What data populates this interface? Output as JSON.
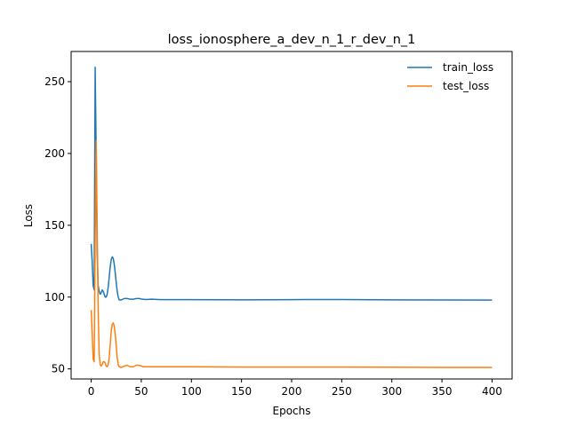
{
  "chart_data": {
    "type": "line",
    "title": "loss_ionosphere_a_dev_n_1_r_dev_n_1",
    "xlabel": "Epochs",
    "ylabel": "Loss",
    "xlim": [
      -20,
      420
    ],
    "ylim": [
      43,
      271
    ],
    "xticks": [
      0,
      50,
      100,
      150,
      200,
      250,
      300,
      350,
      400
    ],
    "yticks": [
      50,
      100,
      150,
      200,
      250
    ],
    "grid": false,
    "legend_position": "top-right",
    "series": [
      {
        "name": "train_loss",
        "color": "#1f77b4",
        "points": [
          [
            0,
            137
          ],
          [
            1,
            125
          ],
          [
            2,
            108
          ],
          [
            3,
            105
          ],
          [
            4,
            260
          ],
          [
            5,
            200
          ],
          [
            6,
            130
          ],
          [
            7,
            108
          ],
          [
            8,
            104
          ],
          [
            9,
            102
          ],
          [
            10,
            103
          ],
          [
            11,
            105
          ],
          [
            12,
            104
          ],
          [
            13,
            102
          ],
          [
            14,
            100
          ],
          [
            15,
            100
          ],
          [
            16,
            102
          ],
          [
            17,
            107
          ],
          [
            18,
            114
          ],
          [
            19,
            121
          ],
          [
            20,
            126
          ],
          [
            21,
            128
          ],
          [
            22,
            127
          ],
          [
            23,
            123
          ],
          [
            24,
            117
          ],
          [
            25,
            110
          ],
          [
            26,
            104
          ],
          [
            27,
            100
          ],
          [
            28,
            98
          ],
          [
            30,
            98
          ],
          [
            33,
            99
          ],
          [
            36,
            99
          ],
          [
            39,
            98.5
          ],
          [
            42,
            98.5
          ],
          [
            45,
            99
          ],
          [
            48,
            99
          ],
          [
            51,
            98.5
          ],
          [
            55,
            98.3
          ],
          [
            60,
            98.5
          ],
          [
            70,
            98.2
          ],
          [
            100,
            98.2
          ],
          [
            150,
            98.1
          ],
          [
            200,
            98.2
          ],
          [
            215,
            98.3
          ],
          [
            250,
            98.3
          ],
          [
            300,
            98.1
          ],
          [
            350,
            98.0
          ],
          [
            400,
            97.9
          ]
        ]
      },
      {
        "name": "test_loss",
        "color": "#ff7f0e",
        "points": [
          [
            0,
            91
          ],
          [
            1,
            75
          ],
          [
            2,
            57
          ],
          [
            3,
            55
          ],
          [
            4,
            140
          ],
          [
            5,
            209
          ],
          [
            6,
            150
          ],
          [
            7,
            90
          ],
          [
            8,
            60
          ],
          [
            9,
            53
          ],
          [
            10,
            52
          ],
          [
            11,
            53
          ],
          [
            12,
            55
          ],
          [
            13,
            55
          ],
          [
            14,
            54
          ],
          [
            15,
            52
          ],
          [
            16,
            51.5
          ],
          [
            17,
            53
          ],
          [
            18,
            58
          ],
          [
            19,
            67
          ],
          [
            20,
            76
          ],
          [
            21,
            81
          ],
          [
            22,
            82
          ],
          [
            23,
            80
          ],
          [
            24,
            74
          ],
          [
            25,
            66
          ],
          [
            26,
            58
          ],
          [
            27,
            53
          ],
          [
            28,
            51.5
          ],
          [
            30,
            51
          ],
          [
            33,
            52
          ],
          [
            36,
            52.5
          ],
          [
            39,
            51.5
          ],
          [
            42,
            51.5
          ],
          [
            45,
            52.5
          ],
          [
            48,
            52.5
          ],
          [
            52,
            51.5
          ],
          [
            60,
            51.5
          ],
          [
            100,
            51.5
          ],
          [
            150,
            51.3
          ],
          [
            200,
            51.3
          ],
          [
            250,
            51.3
          ],
          [
            300,
            51.2
          ],
          [
            350,
            51.0
          ],
          [
            400,
            51.0
          ]
        ]
      }
    ]
  }
}
